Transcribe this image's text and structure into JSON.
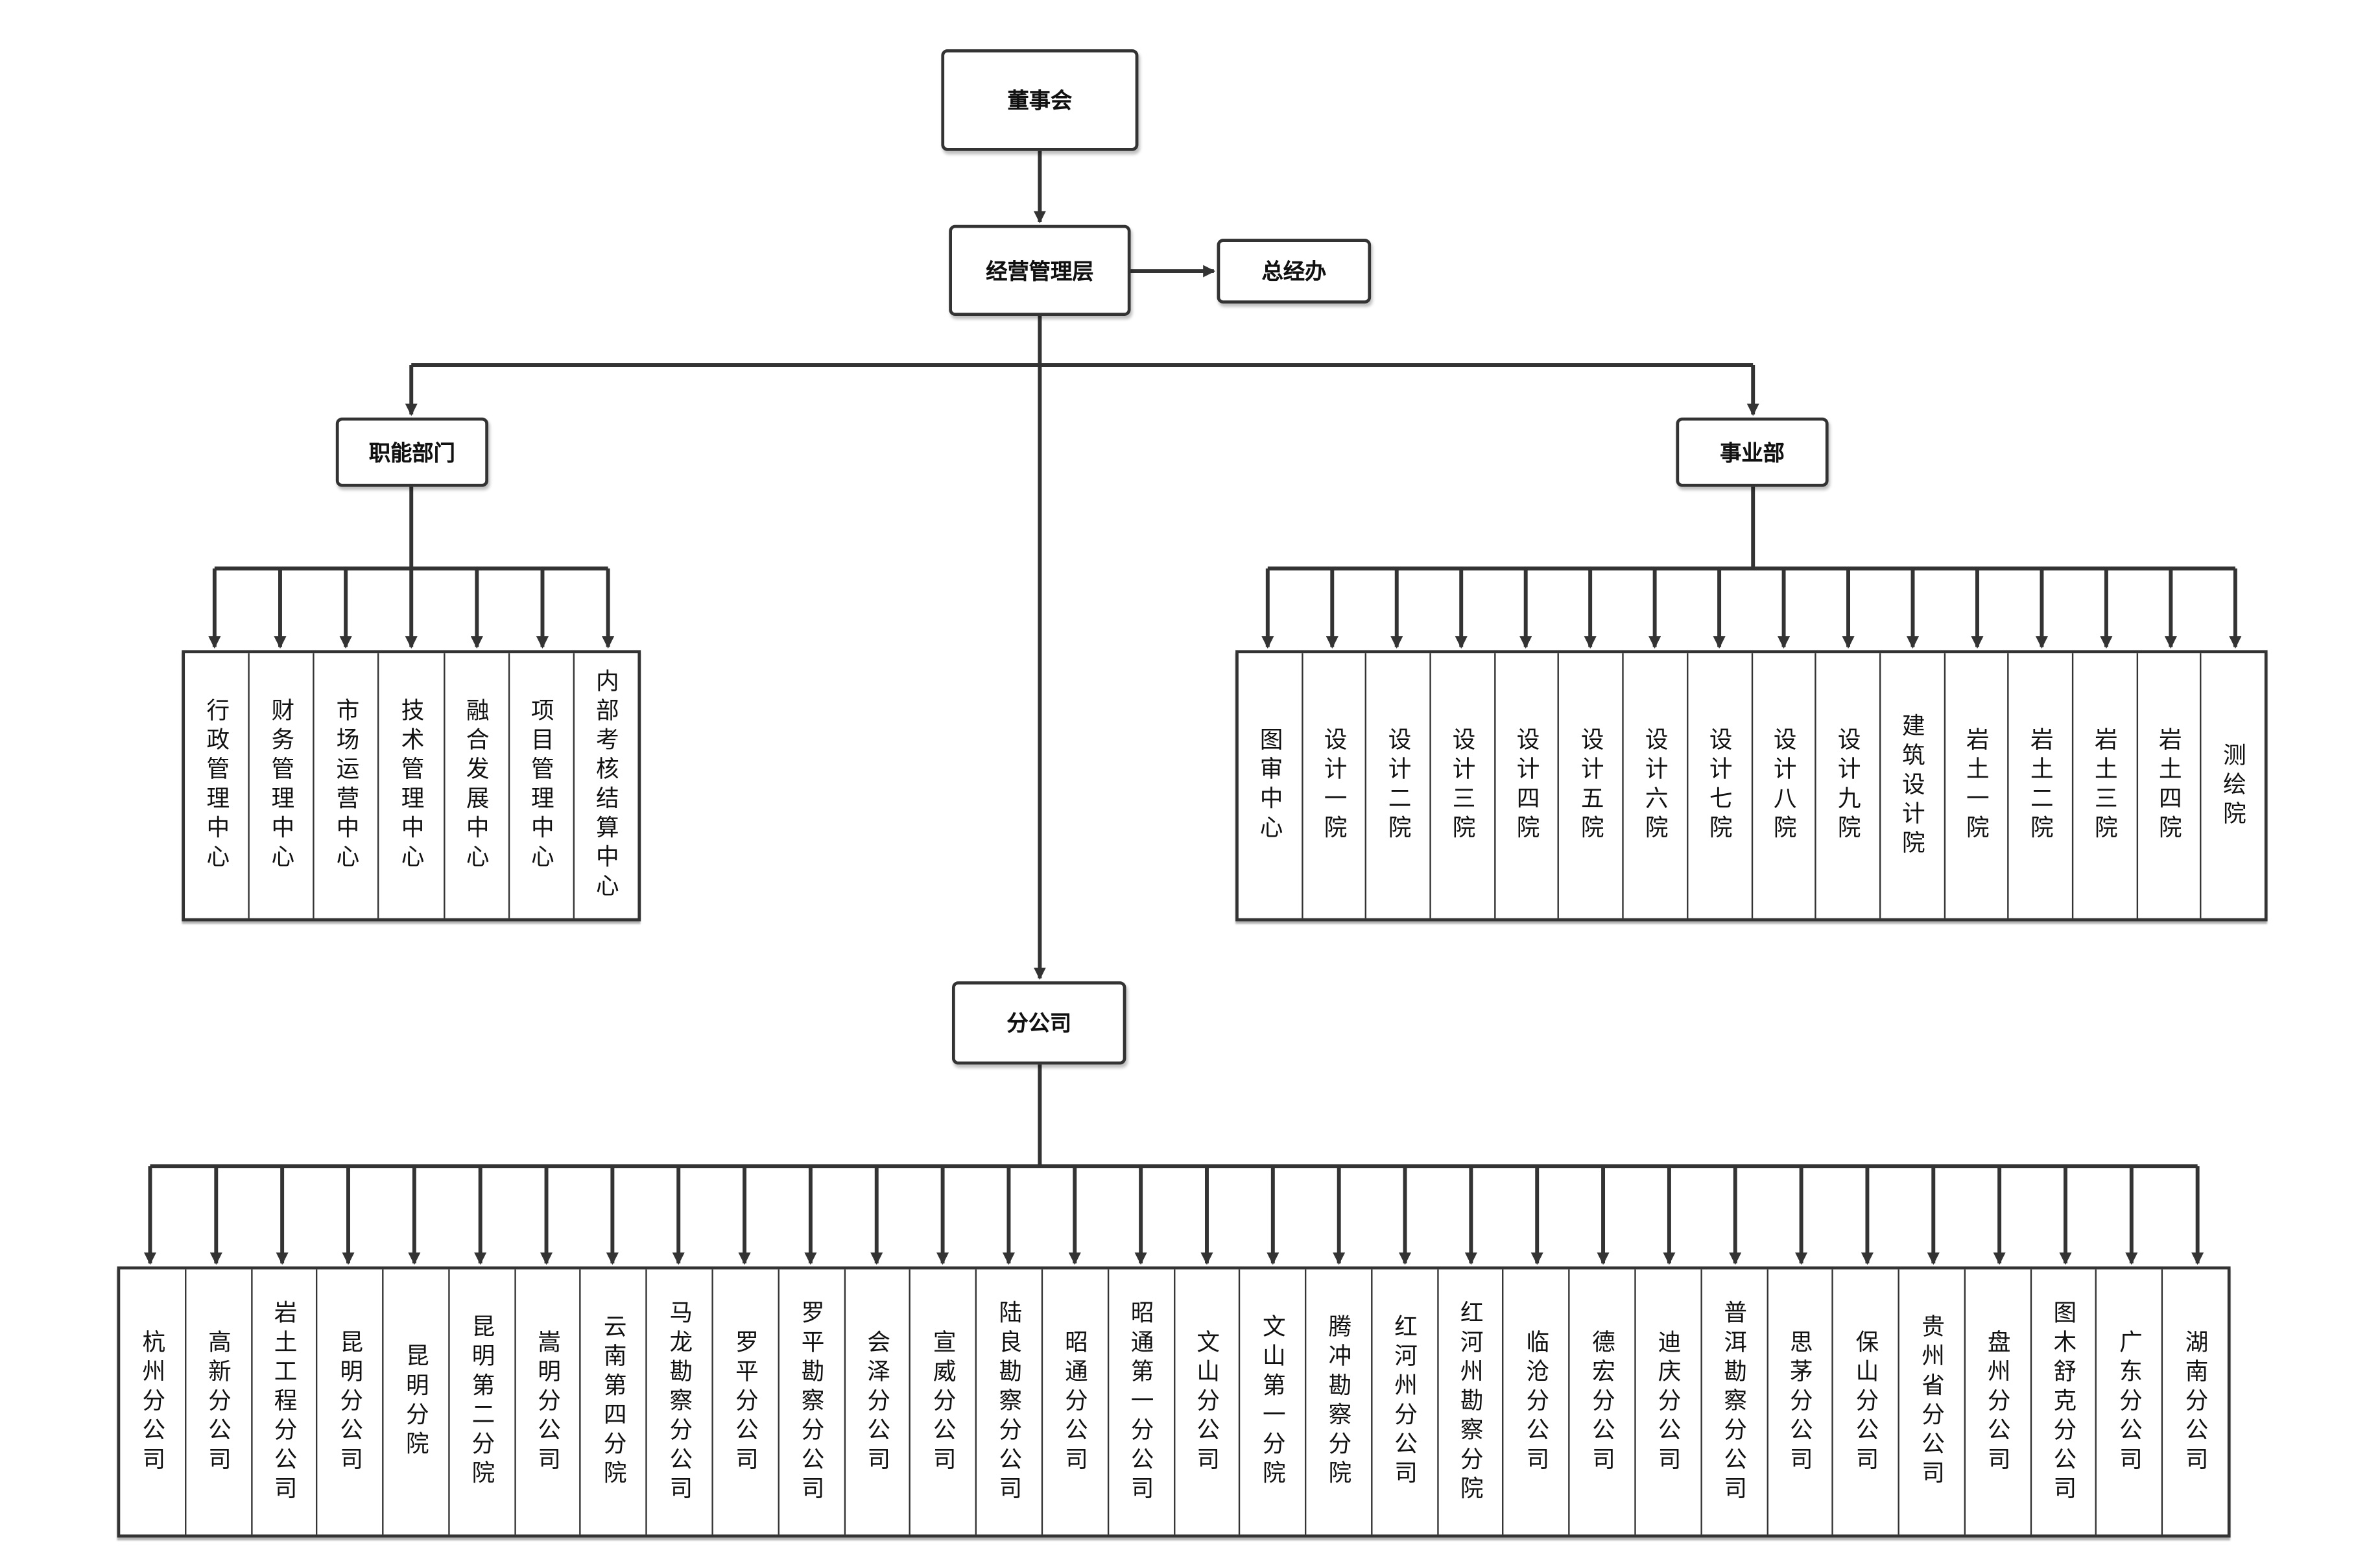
{
  "board": "董事会",
  "management": "经营管理层",
  "gm_office": "总经办",
  "functional": {
    "label": "职能部门",
    "items": [
      "行政管理中心",
      "财务管理中心",
      "市场运营中心",
      "技术管理中心",
      "融合发展中心",
      "项目管理中心",
      "内部考核结算中心"
    ]
  },
  "business": {
    "label": "事业部",
    "items": [
      "图审中心",
      "设计一院",
      "设计二院",
      "设计三院",
      "设计四院",
      "设计五院",
      "设计六院",
      "设计七院",
      "设计八院",
      "设计九院",
      "建筑设计院",
      "岩土一院",
      "岩土二院",
      "岩土三院",
      "岩土四院",
      "测绘院"
    ]
  },
  "branches": {
    "label": "分公司",
    "items": [
      "杭州分公司",
      "高新分公司",
      "岩土工程分公司",
      "昆明分公司",
      "昆明分院",
      "昆明第二分院",
      "嵩明分公司",
      "云南第四分院",
      "马龙勘察分公司",
      "罗平分公司",
      "罗平勘察分公司",
      "会泽分公司",
      "宣威分公司",
      "陆良勘察分公司",
      "昭通分公司",
      "昭通第一分公司",
      "文山分公司",
      "文山第一分院",
      "腾冲勘察分院",
      "红河州分公司",
      "红河州勘察分院",
      "临沧分公司",
      "德宏分公司",
      "迪庆分公司",
      "普洱勘察分公司",
      "思茅分公司",
      "保山分公司",
      "贵州省分公司",
      "盘州分公司",
      "图木舒克分公司",
      "广东分公司",
      "湖南分公司"
    ]
  }
}
